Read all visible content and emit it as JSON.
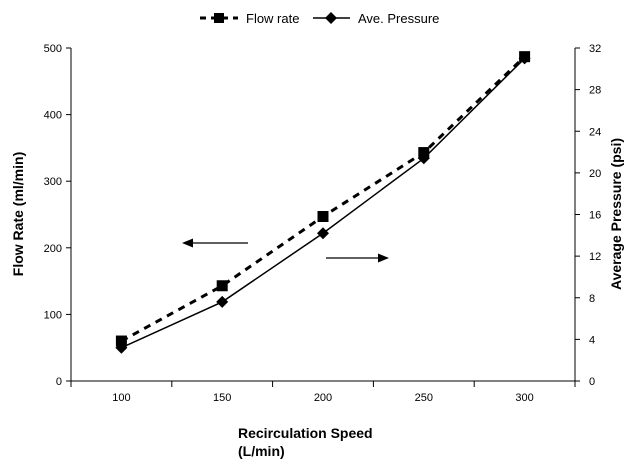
{
  "chart_data": {
    "type": "line",
    "x": [
      100,
      150,
      200,
      250,
      300
    ],
    "xlabel_line1": "Recirculation Speed",
    "xlabel_line2": "(L/min)",
    "ylabel_left": "Flow Rate (ml/min)",
    "ylabel_right": "Average Pressure (psi)",
    "x_ticks": [
      "100",
      "150",
      "200",
      "250",
      "300"
    ],
    "y_left_ticks": [
      "0",
      "100",
      "200",
      "300",
      "400",
      "500"
    ],
    "y_right_ticks": [
      "0",
      "4",
      "8",
      "12",
      "16",
      "20",
      "24",
      "28",
      "32"
    ],
    "xlim": [
      75,
      325
    ],
    "ylim_left": [
      0,
      500
    ],
    "ylim_right": [
      0,
      32
    ],
    "grid": false,
    "legend_position": "top-center",
    "series": [
      {
        "name": "Flow rate",
        "axis": "left",
        "style": "dashed",
        "marker": "square",
        "values": [
          60,
          143,
          247,
          343,
          487
        ]
      },
      {
        "name": "Ave. Pressure",
        "axis": "right",
        "style": "solid",
        "marker": "diamond",
        "values": [
          3.2,
          7.6,
          14.2,
          21.4,
          31.0
        ]
      }
    ],
    "annotations": [
      {
        "type": "arrow",
        "direction": "left",
        "meaning": "Flow rate uses left axis"
      },
      {
        "type": "arrow",
        "direction": "right",
        "meaning": "Ave. Pressure uses right axis"
      }
    ]
  }
}
